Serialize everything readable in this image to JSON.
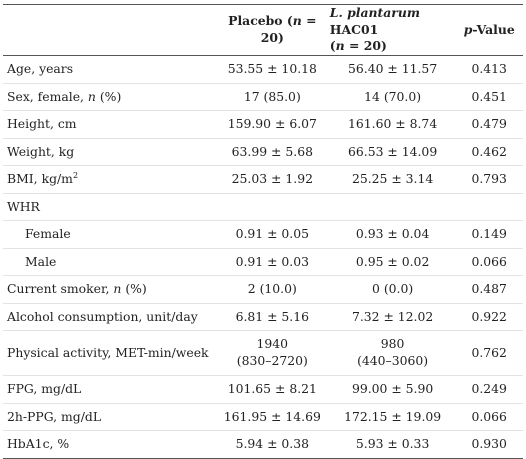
{
  "header": {
    "col_label": "",
    "placebo": "Placebo (n = 20)",
    "placebo_parts": {
      "prefix": "Placebo (",
      "n": "n",
      "suffix": " = 20)"
    },
    "lp_line1": "L. plantarum HAC01",
    "lp_line1_parts": {
      "italic": "L. plantarum",
      "rest": " HAC01"
    },
    "lp_line2_parts": {
      "prefix": "(",
      "n": "n",
      "suffix": " = 20)"
    },
    "pvalue_parts": {
      "p": "p",
      "rest": "-Value"
    }
  },
  "rows": [
    {
      "label": "Age, years",
      "placebo": "53.55 ± 10.18",
      "lp": "56.40 ± 11.57",
      "p": "0.413"
    },
    {
      "label_parts": {
        "prefix": "Sex, female, ",
        "n": "n",
        "suffix": " (%)"
      },
      "placebo": "17 (85.0)",
      "lp": "14 (70.0)",
      "p": "0.451"
    },
    {
      "label": "Height, cm",
      "placebo": "159.90 ± 6.07",
      "lp": "161.60 ± 8.74",
      "p": "0.479"
    },
    {
      "label": "Weight, kg",
      "placebo": "63.99 ± 5.68",
      "lp": "66.53 ± 14.09",
      "p": "0.462"
    },
    {
      "label_parts": {
        "prefix": "BMI, kg/m",
        "sup": "2"
      },
      "placebo": "25.03 ± 1.92",
      "lp": "25.25 ± 3.14",
      "p": "0.793"
    },
    {
      "label": "WHR",
      "placebo": "",
      "lp": "",
      "p": ""
    },
    {
      "label": "Female",
      "placebo": "0.91 ± 0.05",
      "lp": "0.93 ± 0.04",
      "p": "0.149"
    },
    {
      "label": "Male",
      "placebo": "0.91 ± 0.03",
      "lp": "0.95 ± 0.02",
      "p": "0.066"
    },
    {
      "label_parts": {
        "prefix": "Current smoker, ",
        "n": "n",
        "suffix": " (%)"
      },
      "placebo": "2 (10.0)",
      "lp": "0 (0.0)",
      "p": "0.487"
    },
    {
      "label": "Alcohol consumption, unit/day",
      "placebo": "6.81 ± 5.16",
      "lp": "7.32 ± 12.02",
      "p": "0.922"
    },
    {
      "label": "Physical activity, MET-min/week",
      "placebo_line1": "1940",
      "placebo_line2": "(830–2720)",
      "lp_line1": "980",
      "lp_line2": "(440–3060)",
      "p": "0.762"
    },
    {
      "label": "FPG, mg/dL",
      "placebo": "101.65 ± 8.21",
      "lp": "99.00 ± 5.90",
      "p": "0.249"
    },
    {
      "label": "2h-PPG, mg/dL",
      "placebo": "161.95 ± 14.69",
      "lp": "172.15 ± 19.09",
      "p": "0.066"
    },
    {
      "label": "HbA1c, %",
      "placebo": "5.94 ± 0.38",
      "lp": "5.93 ± 0.33",
      "p": "0.930"
    }
  ]
}
